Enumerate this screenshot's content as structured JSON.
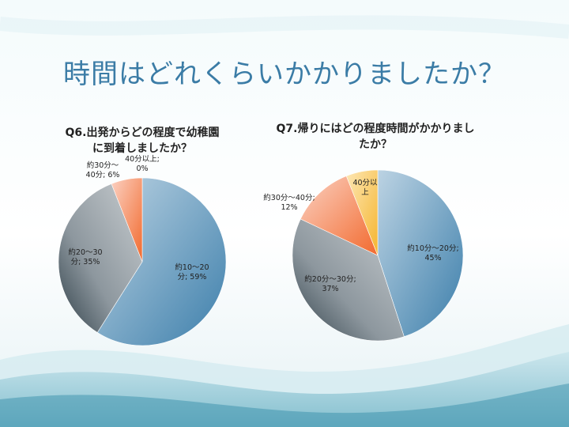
{
  "slide": {
    "title": "時間はどれくらいかかりましたか？",
    "colors": {
      "title": "#3b7ca6"
    }
  },
  "chart_data": [
    {
      "type": "pie",
      "title": "Q6.出発からどの程度で幼稚園に到着しましたか？",
      "title_lines": [
        "Q6.出発からどの程度で幼稚園",
        "に到着しましたか？"
      ],
      "slices": [
        {
          "label_lines": [
            "約10～20",
            "分; 59%"
          ],
          "value": 59,
          "color": "#5b8fb8"
        },
        {
          "label_lines": [
            "約20～30",
            "分; 35%"
          ],
          "value": 35,
          "color": "#8f9aa2"
        },
        {
          "label_lines": [
            "約30分～",
            "40分; 6%"
          ],
          "value": 6,
          "color": "#f08a5f"
        },
        {
          "label_lines": [
            "40分以上;",
            "0%"
          ],
          "value": 0,
          "color": "#f5c04a"
        }
      ]
    },
    {
      "type": "pie",
      "title": "Q7.帰りにはどの程度時間がかかりましたか？",
      "title_lines": [
        "Q7.帰りにはどの程度時間がかかりまし",
        "たか？"
      ],
      "slices": [
        {
          "label_lines": [
            "約10分～20分;",
            "45%"
          ],
          "value": 45,
          "color": "#5b8fb8"
        },
        {
          "label_lines": [
            "約20分～30分;",
            "37%"
          ],
          "value": 37,
          "color": "#8f9aa2"
        },
        {
          "label_lines": [
            "約30分～40分;",
            "12%"
          ],
          "value": 12,
          "color": "#f08a5f"
        },
        {
          "label_lines": [
            "40分以",
            "上"
          ],
          "value": 6,
          "color": "#f5c04a"
        }
      ]
    }
  ]
}
